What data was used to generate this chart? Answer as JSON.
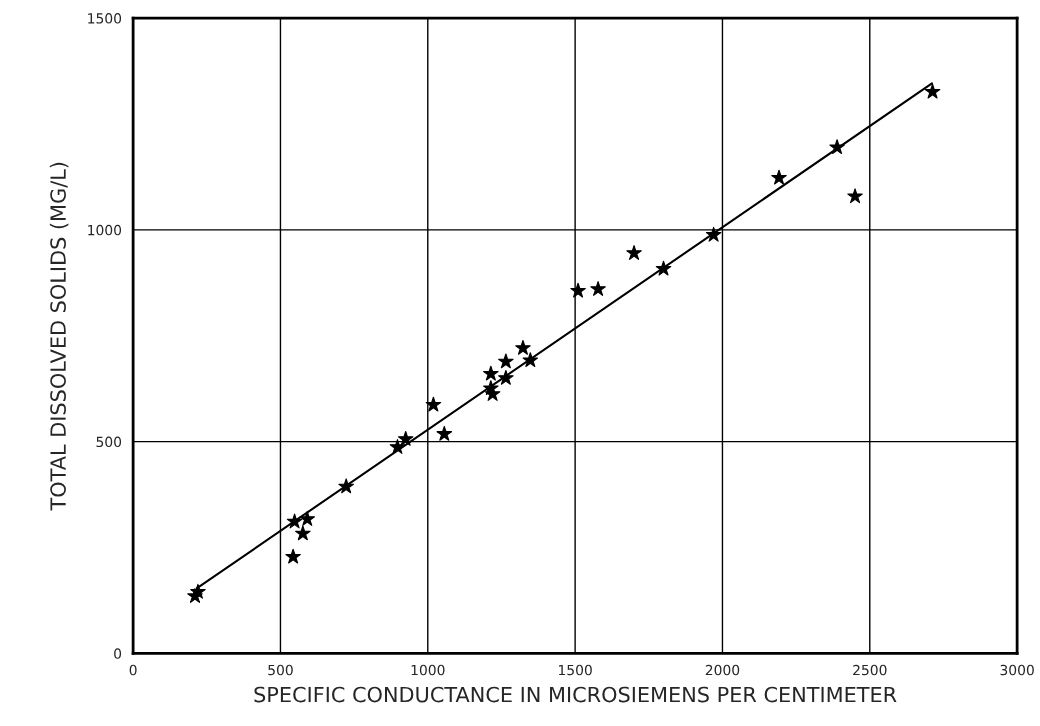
{
  "chart_data": {
    "type": "scatter",
    "xlabel": "SPECIFIC CONDUCTANCE IN MICROSIEMENS PER CENTIMETER",
    "ylabel": "TOTAL DISSOLVED SOLIDS (MG/L)",
    "xlim": [
      0,
      3000
    ],
    "ylim": [
      0,
      1500
    ],
    "xticks": [
      0,
      500,
      1000,
      1500,
      2000,
      2500,
      3000
    ],
    "yticks": [
      0,
      500,
      1000,
      1500
    ],
    "grid": true,
    "marker": "star",
    "series": [
      {
        "color": "#000000",
        "x": [
          210,
          220,
          543,
          548,
          576,
          591,
          723,
          897,
          925,
          1019,
          1056,
          1214,
          1214,
          1220,
          1265,
          1265,
          1323,
          1348,
          1510,
          1578,
          1700,
          1800,
          1970,
          2192,
          2389,
          2450,
          2713
        ],
        "values": [
          135,
          145,
          228,
          311,
          283,
          317,
          394,
          487,
          506,
          587,
          518,
          660,
          626,
          612,
          689,
          650,
          721,
          692,
          856,
          860,
          945,
          908,
          988,
          1123,
          1195,
          1079,
          1326
        ]
      },
      {
        "type": "line",
        "color": "#000000",
        "marker": "none",
        "x": [
          217,
          2711
        ],
        "values": [
          154,
          1346
        ]
      }
    ]
  }
}
